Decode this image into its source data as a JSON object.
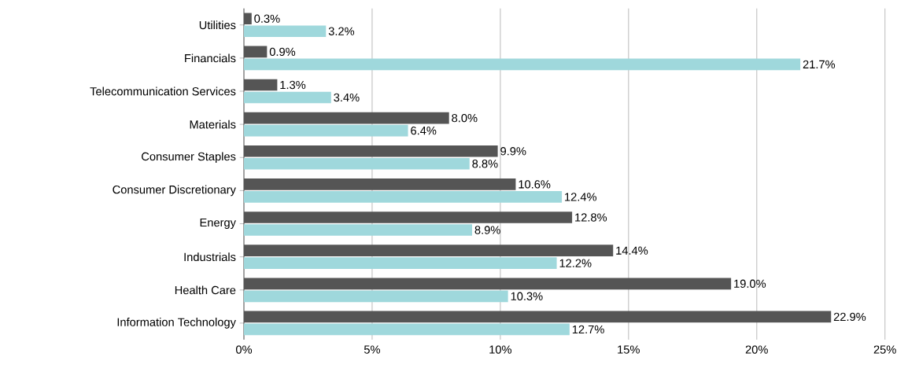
{
  "chart_data": {
    "type": "bar",
    "orientation": "horizontal",
    "categories": [
      "Utilities",
      "Financials",
      "Telecommunication Services",
      "Materials",
      "Consumer Staples",
      "Consumer Discretionary",
      "Energy",
      "Industrials",
      "Health Care",
      "Information Technology"
    ],
    "series": [
      {
        "color": "#555555",
        "values": [
          0.3,
          0.9,
          1.3,
          8.0,
          9.9,
          10.6,
          12.8,
          14.4,
          19.0,
          22.9
        ],
        "value_labels": [
          "0.3%",
          "0.9%",
          "1.3%",
          "8.0%",
          "9.9%",
          "10.6%",
          "12.8%",
          "14.4%",
          "19.0%",
          "22.9%"
        ]
      },
      {
        "color": "#9fd8dc",
        "values": [
          3.2,
          21.7,
          3.4,
          6.4,
          8.8,
          12.4,
          8.9,
          12.2,
          10.3,
          12.7
        ],
        "value_labels": [
          "3.2%",
          "21.7%",
          "3.4%",
          "6.4%",
          "8.8%",
          "12.4%",
          "8.9%",
          "12.2%",
          "10.3%",
          "12.7%"
        ]
      }
    ],
    "xlim": [
      0,
      25
    ],
    "xticks": [
      {
        "value": 0,
        "label": "0%"
      },
      {
        "value": 5,
        "label": "5%"
      },
      {
        "value": 10,
        "label": "10%"
      },
      {
        "value": 15,
        "label": "15%"
      },
      {
        "value": 20,
        "label": "20%"
      },
      {
        "value": 25,
        "label": "25%"
      }
    ],
    "grid": "x"
  }
}
